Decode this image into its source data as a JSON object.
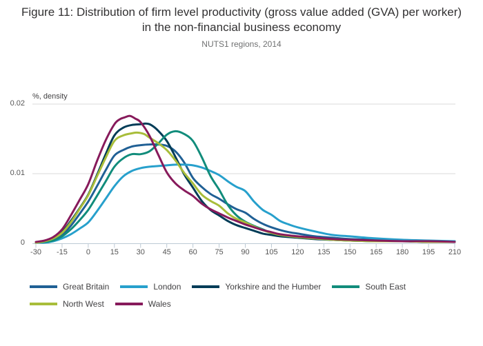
{
  "header": {
    "title": "Figure 11: Distribution of firm level productivity (gross value added (GVA) per worker) in the non-financial business economy",
    "subtitle": "NUTS1 regions, 2014"
  },
  "chart_data": {
    "type": "line",
    "title": "Figure 11: Distribution of firm level productivity (gross value added (GVA) per worker) in the non-financial business economy",
    "subtitle": "NUTS1 regions, 2014",
    "xlabel": "",
    "ylabel": "%, density",
    "xlim": [
      -30,
      210
    ],
    "ylim": [
      0,
      0.02
    ],
    "x_ticks": [
      -30,
      -15,
      0,
      15,
      30,
      45,
      60,
      75,
      90,
      105,
      120,
      135,
      150,
      165,
      180,
      195,
      210
    ],
    "y_ticks": [
      {
        "value": 0,
        "label": "0"
      },
      {
        "value": 0.01,
        "label": "0.01"
      },
      {
        "value": 0.02,
        "label": "0.02"
      }
    ],
    "grid": "horizontal gridlines at 0.01 and 0.02",
    "legend_position": "bottom-left, two rows",
    "axis_color": "#bcc9d4",
    "gridline_color": "#d9d9d9",
    "series": [
      {
        "name": "Great Britain",
        "color": "#206095",
        "points": [
          [
            -30,
            0.0001
          ],
          [
            -25,
            0.0002
          ],
          [
            -20,
            0.0005
          ],
          [
            -15,
            0.0012
          ],
          [
            -10,
            0.0025
          ],
          [
            -5,
            0.0042
          ],
          [
            0,
            0.006
          ],
          [
            5,
            0.0082
          ],
          [
            10,
            0.0105
          ],
          [
            15,
            0.0126
          ],
          [
            20,
            0.0134
          ],
          [
            25,
            0.0139
          ],
          [
            30,
            0.0141
          ],
          [
            35,
            0.0142
          ],
          [
            40,
            0.0142
          ],
          [
            45,
            0.014
          ],
          [
            50,
            0.0132
          ],
          [
            55,
            0.0116
          ],
          [
            60,
            0.0094
          ],
          [
            65,
            0.0081
          ],
          [
            70,
            0.0071
          ],
          [
            75,
            0.0064
          ],
          [
            80,
            0.0056
          ],
          [
            85,
            0.0049
          ],
          [
            90,
            0.0044
          ],
          [
            95,
            0.0035
          ],
          [
            100,
            0.0028
          ],
          [
            105,
            0.0023
          ],
          [
            110,
            0.0019
          ],
          [
            115,
            0.0016
          ],
          [
            120,
            0.0014
          ],
          [
            130,
            0.001
          ],
          [
            140,
            0.0008
          ],
          [
            150,
            0.0006
          ],
          [
            165,
            0.0005
          ],
          [
            180,
            0.0004
          ],
          [
            195,
            0.0003
          ],
          [
            210,
            0.0003
          ]
        ]
      },
      {
        "name": "London",
        "color": "#27A0CC",
        "points": [
          [
            -30,
            0.0001
          ],
          [
            -25,
            0.0001
          ],
          [
            -20,
            0.0003
          ],
          [
            -15,
            0.0007
          ],
          [
            -10,
            0.0013
          ],
          [
            -5,
            0.0021
          ],
          [
            0,
            0.003
          ],
          [
            5,
            0.0046
          ],
          [
            10,
            0.0064
          ],
          [
            15,
            0.0082
          ],
          [
            20,
            0.0096
          ],
          [
            25,
            0.0104
          ],
          [
            30,
            0.0108
          ],
          [
            35,
            0.011
          ],
          [
            40,
            0.0111
          ],
          [
            45,
            0.0112
          ],
          [
            50,
            0.0113
          ],
          [
            55,
            0.0113
          ],
          [
            60,
            0.0112
          ],
          [
            65,
            0.0109
          ],
          [
            70,
            0.0104
          ],
          [
            75,
            0.0098
          ],
          [
            80,
            0.0089
          ],
          [
            85,
            0.0081
          ],
          [
            90,
            0.0075
          ],
          [
            95,
            0.006
          ],
          [
            100,
            0.0048
          ],
          [
            105,
            0.0041
          ],
          [
            110,
            0.0032
          ],
          [
            115,
            0.0027
          ],
          [
            120,
            0.0023
          ],
          [
            130,
            0.0017
          ],
          [
            140,
            0.0012
          ],
          [
            150,
            0.001
          ],
          [
            165,
            0.0007
          ],
          [
            180,
            0.0005
          ],
          [
            195,
            0.0004
          ],
          [
            210,
            0.0003
          ]
        ]
      },
      {
        "name": "Yorkshire and the Humber",
        "color": "#003C57",
        "points": [
          [
            -30,
            0.0001
          ],
          [
            -25,
            0.0003
          ],
          [
            -20,
            0.0007
          ],
          [
            -15,
            0.0016
          ],
          [
            -10,
            0.0032
          ],
          [
            -5,
            0.005
          ],
          [
            0,
            0.007
          ],
          [
            5,
            0.0098
          ],
          [
            10,
            0.0128
          ],
          [
            15,
            0.0155
          ],
          [
            20,
            0.0166
          ],
          [
            25,
            0.017
          ],
          [
            30,
            0.0171
          ],
          [
            33,
            0.0172
          ],
          [
            36,
            0.017
          ],
          [
            40,
            0.0162
          ],
          [
            45,
            0.0147
          ],
          [
            50,
            0.0124
          ],
          [
            55,
            0.0099
          ],
          [
            60,
            0.008
          ],
          [
            65,
            0.0061
          ],
          [
            70,
            0.0048
          ],
          [
            75,
            0.004
          ],
          [
            80,
            0.0032
          ],
          [
            85,
            0.0026
          ],
          [
            90,
            0.0022
          ],
          [
            95,
            0.0018
          ],
          [
            100,
            0.0014
          ],
          [
            105,
            0.0012
          ],
          [
            110,
            0.001
          ],
          [
            120,
            0.0008
          ],
          [
            130,
            0.0006
          ],
          [
            140,
            0.0005
          ],
          [
            150,
            0.0004
          ],
          [
            165,
            0.0003
          ],
          [
            180,
            0.0003
          ],
          [
            195,
            0.0002
          ],
          [
            210,
            0.0002
          ]
        ]
      },
      {
        "name": "South East",
        "color": "#118C7B",
        "points": [
          [
            -30,
            0.0001
          ],
          [
            -25,
            0.0002
          ],
          [
            -20,
            0.0004
          ],
          [
            -15,
            0.001
          ],
          [
            -10,
            0.002
          ],
          [
            -5,
            0.0033
          ],
          [
            0,
            0.0048
          ],
          [
            5,
            0.0068
          ],
          [
            10,
            0.0089
          ],
          [
            15,
            0.011
          ],
          [
            20,
            0.0122
          ],
          [
            25,
            0.0128
          ],
          [
            30,
            0.0128
          ],
          [
            35,
            0.0132
          ],
          [
            40,
            0.0143
          ],
          [
            45,
            0.0156
          ],
          [
            50,
            0.0161
          ],
          [
            55,
            0.0157
          ],
          [
            60,
            0.0147
          ],
          [
            65,
            0.0124
          ],
          [
            70,
            0.0097
          ],
          [
            75,
            0.0077
          ],
          [
            80,
            0.0055
          ],
          [
            85,
            0.004
          ],
          [
            90,
            0.0031
          ],
          [
            95,
            0.0025
          ],
          [
            100,
            0.002
          ],
          [
            105,
            0.0015
          ],
          [
            110,
            0.0012
          ],
          [
            120,
            0.0009
          ],
          [
            130,
            0.0007
          ],
          [
            140,
            0.0005
          ],
          [
            150,
            0.0004
          ],
          [
            165,
            0.0003
          ],
          [
            180,
            0.0003
          ],
          [
            195,
            0.0002
          ],
          [
            210,
            0.0002
          ]
        ]
      },
      {
        "name": "North West",
        "color": "#A8BD3A",
        "points": [
          [
            -30,
            0.0001
          ],
          [
            -25,
            0.0003
          ],
          [
            -20,
            0.0007
          ],
          [
            -15,
            0.0015
          ],
          [
            -10,
            0.003
          ],
          [
            -5,
            0.0049
          ],
          [
            0,
            0.0069
          ],
          [
            5,
            0.0096
          ],
          [
            10,
            0.0123
          ],
          [
            15,
            0.0147
          ],
          [
            20,
            0.0155
          ],
          [
            25,
            0.0158
          ],
          [
            28,
            0.0159
          ],
          [
            32,
            0.0157
          ],
          [
            35,
            0.0152
          ],
          [
            40,
            0.0144
          ],
          [
            45,
            0.0134
          ],
          [
            50,
            0.0119
          ],
          [
            55,
            0.0101
          ],
          [
            60,
            0.0086
          ],
          [
            65,
            0.007
          ],
          [
            70,
            0.0061
          ],
          [
            75,
            0.0054
          ],
          [
            80,
            0.0043
          ],
          [
            85,
            0.0035
          ],
          [
            90,
            0.003
          ],
          [
            95,
            0.0024
          ],
          [
            100,
            0.0019
          ],
          [
            105,
            0.0015
          ],
          [
            110,
            0.0012
          ],
          [
            120,
            0.0009
          ],
          [
            130,
            0.0007
          ],
          [
            140,
            0.0005
          ],
          [
            150,
            0.0004
          ],
          [
            165,
            0.0003
          ],
          [
            180,
            0.0003
          ],
          [
            195,
            0.0002
          ],
          [
            210,
            0.0002
          ]
        ]
      },
      {
        "name": "Wales",
        "color": "#871A5B",
        "points": [
          [
            -30,
            0.0002
          ],
          [
            -25,
            0.0004
          ],
          [
            -20,
            0.0009
          ],
          [
            -15,
            0.002
          ],
          [
            -10,
            0.004
          ],
          [
            -5,
            0.0062
          ],
          [
            0,
            0.0085
          ],
          [
            5,
            0.0118
          ],
          [
            10,
            0.0148
          ],
          [
            15,
            0.0171
          ],
          [
            18,
            0.0178
          ],
          [
            21,
            0.0181
          ],
          [
            24,
            0.0183
          ],
          [
            27,
            0.0179
          ],
          [
            30,
            0.0174
          ],
          [
            35,
            0.0155
          ],
          [
            40,
            0.0128
          ],
          [
            45,
            0.0102
          ],
          [
            50,
            0.0086
          ],
          [
            55,
            0.0076
          ],
          [
            60,
            0.0068
          ],
          [
            65,
            0.0057
          ],
          [
            70,
            0.0049
          ],
          [
            75,
            0.0043
          ],
          [
            80,
            0.0037
          ],
          [
            85,
            0.0032
          ],
          [
            90,
            0.0027
          ],
          [
            95,
            0.0023
          ],
          [
            100,
            0.0019
          ],
          [
            105,
            0.0016
          ],
          [
            110,
            0.0013
          ],
          [
            120,
            0.001
          ],
          [
            130,
            0.0008
          ],
          [
            140,
            0.0006
          ],
          [
            150,
            0.0005
          ],
          [
            165,
            0.0004
          ],
          [
            180,
            0.0003
          ],
          [
            195,
            0.0003
          ],
          [
            210,
            0.0002
          ]
        ]
      }
    ]
  }
}
